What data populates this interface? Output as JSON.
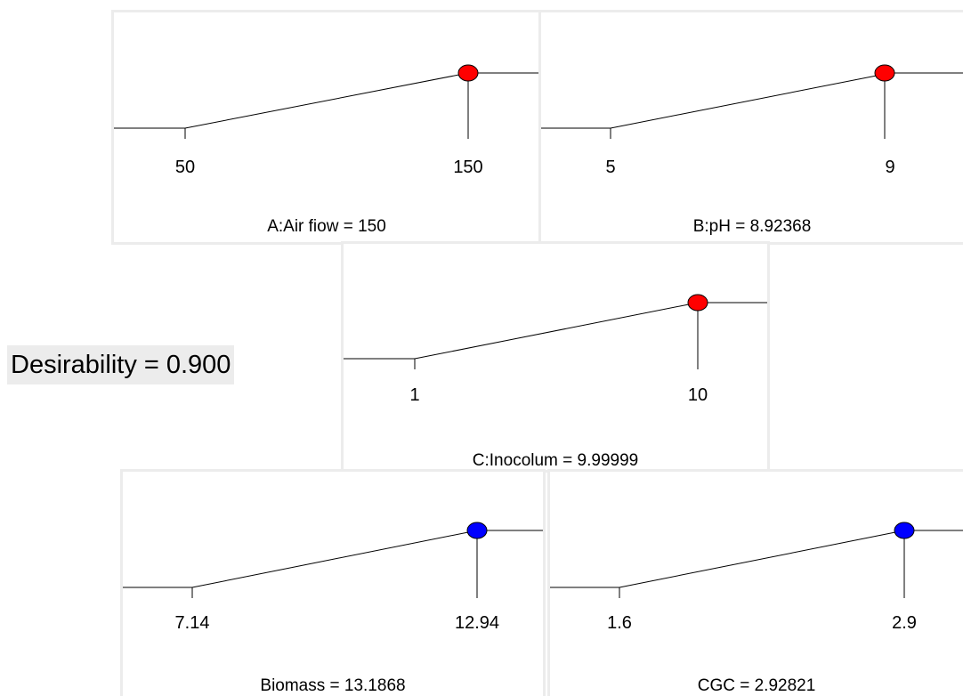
{
  "desirability_label": "Desirability = 0.900",
  "chart_data": [
    {
      "type": "line",
      "name": "A:Air fiow = 150",
      "caption": "A:Air fiow = 150",
      "low": 50,
      "high": 150,
      "current": 150,
      "low_label": "50",
      "high_label": "150",
      "desirability": 1.0,
      "marker_color": "#ff0000"
    },
    {
      "type": "line",
      "name": "B:pH = 8.92368",
      "caption": "B:pH = 8.92368",
      "low": 5,
      "high": 9,
      "current": 8.92368,
      "low_label": "5",
      "high_label": "9",
      "desirability": 1.0,
      "marker_color": "#ff0000"
    },
    {
      "type": "line",
      "name": "C:Inocolum = 9.99999",
      "caption": "C:Inocolum = 9.99999",
      "low": 1,
      "high": 10,
      "current": 9.99999,
      "low_label": "1",
      "high_label": "10",
      "desirability": 1.0,
      "marker_color": "#ff0000"
    },
    {
      "type": "line",
      "name": "Biomass = 13.1868",
      "caption": "Biomass = 13.1868",
      "low": 7.14,
      "high": 12.94,
      "current": 13.1868,
      "low_label": "7.14",
      "high_label": "12.94",
      "desirability": 1.0,
      "marker_color": "#0000ff"
    },
    {
      "type": "line",
      "name": "CGC = 2.92821",
      "caption": "CGC = 2.92821",
      "low": 1.6,
      "high": 2.9,
      "current": 2.92821,
      "low_label": "1.6",
      "high_label": "2.9",
      "desirability": 1.0,
      "marker_color": "#0000ff"
    }
  ]
}
